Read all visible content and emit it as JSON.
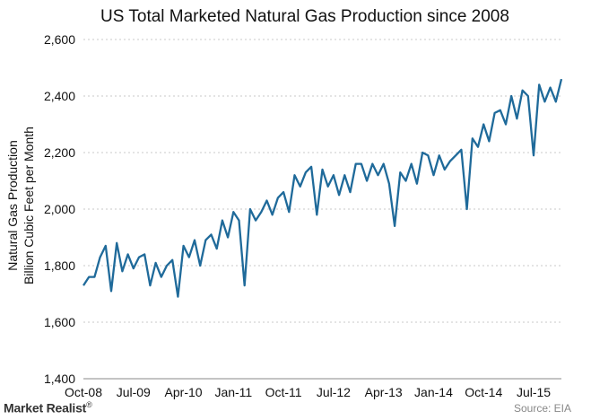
{
  "chart_data": {
    "type": "line",
    "title": "US Total Marketed Natural Gas Production since 2008",
    "ylabel_line1": "Natural Gas Production",
    "ylabel_line2": "Billion Cubic Feet per Month",
    "ylim": [
      1400,
      2600
    ],
    "y_ticks": [
      1400,
      1600,
      1800,
      2000,
      2200,
      2400,
      2600
    ],
    "y_tick_labels": [
      "1,400",
      "1,600",
      "1,800",
      "2,000",
      "2,200",
      "2,400",
      "2,600"
    ],
    "x_tick_labels": [
      "Oct-08",
      "Jul-09",
      "Apr-10",
      "Jan-11",
      "Oct-11",
      "Jul-12",
      "Apr-13",
      "Jan-14",
      "Oct-14",
      "Jul-15"
    ],
    "x_start": "2008-10",
    "x_end": "2015-07",
    "grid": true,
    "legend": "none",
    "line_color": "#1f6a9a",
    "series": [
      {
        "values": [
          1730,
          1760,
          1760,
          1830,
          1870,
          1710,
          1880,
          1780,
          1840,
          1790,
          1830,
          1840,
          1730,
          1810,
          1760,
          1800,
          1820,
          1690,
          1870,
          1830,
          1890,
          1800,
          1890,
          1910,
          1860,
          1960,
          1900,
          1990,
          1960,
          1730,
          2000,
          1960,
          1990,
          2030,
          1980,
          2040,
          2060,
          1990,
          2120,
          2080,
          2130,
          2150,
          1980,
          2140,
          2080,
          2120,
          2050,
          2120,
          2060,
          2160,
          2160,
          2100,
          2160,
          2120,
          2160,
          2090,
          1940,
          2130,
          2100,
          2160,
          2090,
          2200,
          2190,
          2120,
          2190,
          2140,
          2170,
          2190,
          2210,
          2000,
          2250,
          2220,
          2300,
          2240,
          2340,
          2350,
          2300,
          2400,
          2320,
          2420,
          2400,
          2190,
          2440,
          2380,
          2430,
          2380,
          2460
        ]
      }
    ]
  },
  "footer": {
    "brand": "Market Realist",
    "brand_mark": "®",
    "source": "Source: EIA"
  }
}
